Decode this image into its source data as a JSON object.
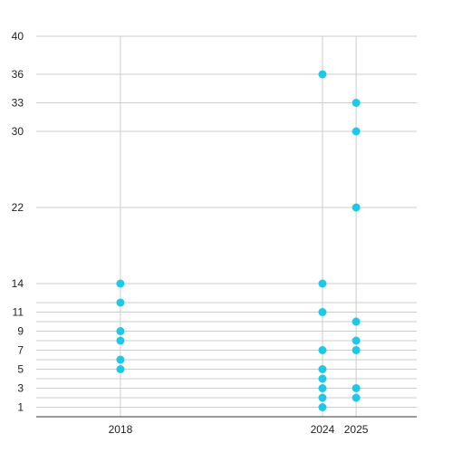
{
  "chart_data": {
    "type": "scatter",
    "title": "",
    "xlabel": "",
    "ylabel": "",
    "xlim": [
      2015.5,
      2026.8
    ],
    "ylim": [
      0,
      40
    ],
    "x_ticks": [
      2018,
      2024,
      2025
    ],
    "y_ticks": [
      1,
      3,
      5,
      7,
      9,
      11,
      14,
      22,
      30,
      33,
      36,
      40
    ],
    "y_grid": [
      1,
      2,
      3,
      4,
      5,
      6,
      7,
      8,
      9,
      10,
      11,
      12,
      14,
      22,
      30,
      33,
      36,
      40
    ],
    "x_grid": [
      2018,
      2024,
      2025
    ],
    "grid": true,
    "legend": "none",
    "point_color": "#1ec8e8",
    "series": [
      {
        "points": [
          {
            "x": 2018,
            "y": 14
          },
          {
            "x": 2018,
            "y": 12
          },
          {
            "x": 2018,
            "y": 9
          },
          {
            "x": 2018,
            "y": 8
          },
          {
            "x": 2018,
            "y": 6
          },
          {
            "x": 2018,
            "y": 5
          },
          {
            "x": 2024,
            "y": 36
          },
          {
            "x": 2024,
            "y": 14
          },
          {
            "x": 2024,
            "y": 11
          },
          {
            "x": 2024,
            "y": 7
          },
          {
            "x": 2024,
            "y": 5
          },
          {
            "x": 2024,
            "y": 4
          },
          {
            "x": 2024,
            "y": 3
          },
          {
            "x": 2024,
            "y": 2
          },
          {
            "x": 2024,
            "y": 1
          },
          {
            "x": 2025,
            "y": 33
          },
          {
            "x": 2025,
            "y": 30
          },
          {
            "x": 2025,
            "y": 22
          },
          {
            "x": 2025,
            "y": 10
          },
          {
            "x": 2025,
            "y": 8
          },
          {
            "x": 2025,
            "y": 7
          },
          {
            "x": 2025,
            "y": 3
          },
          {
            "x": 2025,
            "y": 2
          }
        ]
      }
    ]
  }
}
